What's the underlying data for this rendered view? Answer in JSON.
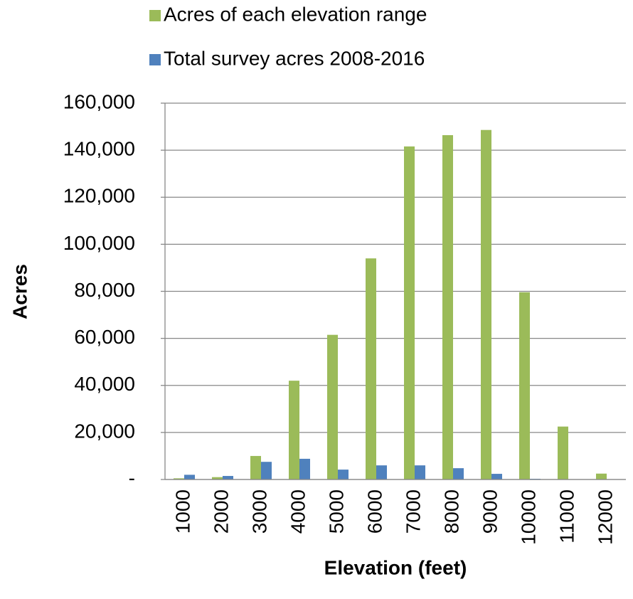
{
  "chart_data": {
    "type": "bar",
    "x_label": "Elevation (feet)",
    "y_label": "Acres",
    "categories": [
      "1000",
      "2000",
      "3000",
      "4000",
      "5000",
      "6000",
      "7000",
      "8000",
      "9000",
      "10000",
      "11000",
      "12000"
    ],
    "series": [
      {
        "name": "Acres of each elevation range",
        "color": "#9bbb59",
        "values": [
          500,
          1000,
          10000,
          42000,
          61500,
          94000,
          141600,
          146400,
          148600,
          79600,
          22500,
          2500
        ]
      },
      {
        "name": "Total survey acres 2008-2016",
        "color": "#4f81bd",
        "values": [
          2000,
          1500,
          7500,
          8800,
          4200,
          6000,
          6000,
          4800,
          2400,
          300,
          0,
          0
        ]
      }
    ],
    "ylim": [
      0,
      160000
    ],
    "yticks": [
      {
        "value": 0,
        "label": "-"
      },
      {
        "value": 20000,
        "label": "20,000"
      },
      {
        "value": 40000,
        "label": "40,000"
      },
      {
        "value": 60000,
        "label": "60,000"
      },
      {
        "value": 80000,
        "label": "80,000"
      },
      {
        "value": 100000,
        "label": "100,000"
      },
      {
        "value": 120000,
        "label": "120,000"
      },
      {
        "value": 140000,
        "label": "140,000"
      },
      {
        "value": 160000,
        "label": "160,000"
      }
    ],
    "grid": true,
    "legend": "top"
  }
}
